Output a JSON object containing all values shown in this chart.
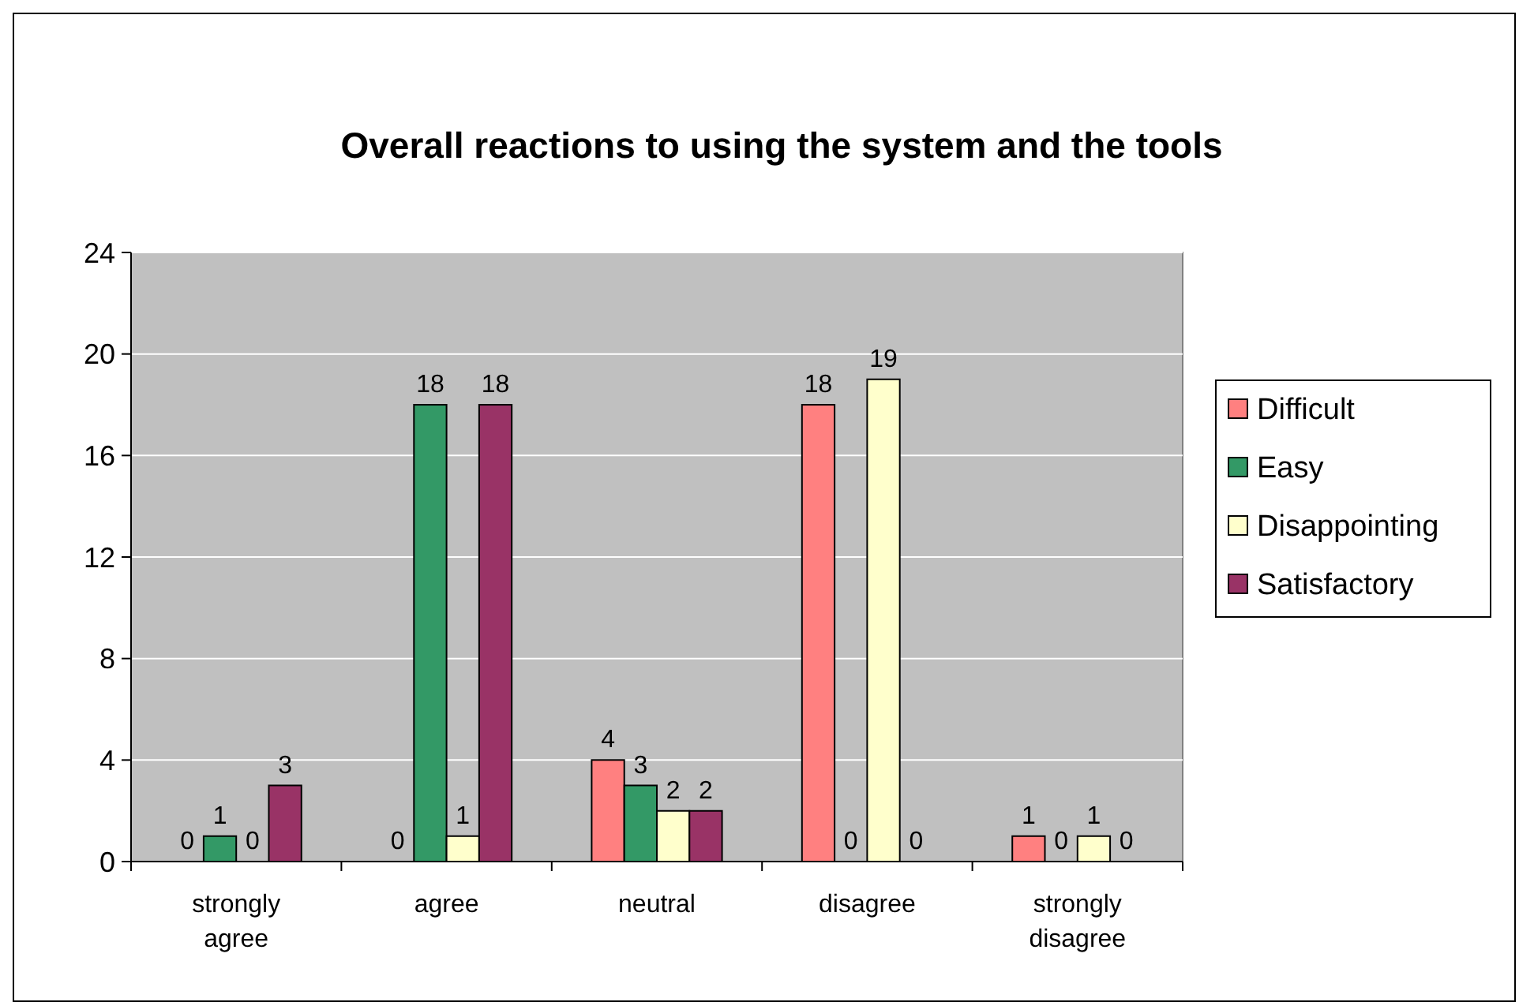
{
  "chart_data": {
    "type": "bar",
    "title": "Overall reactions to using the system and the tools",
    "categories": [
      "strongly agree",
      "agree",
      "neutral",
      "disagree",
      "strongly disagree"
    ],
    "series": [
      {
        "name": "Difficult",
        "color": "#ff8080",
        "values": [
          0,
          0,
          4,
          18,
          1
        ]
      },
      {
        "name": "Easy",
        "color": "#339966",
        "values": [
          1,
          18,
          3,
          0,
          0
        ]
      },
      {
        "name": "Disappointing",
        "color": "#ffffcc",
        "values": [
          0,
          1,
          2,
          19,
          1
        ]
      },
      {
        "name": "Satisfactory",
        "color": "#993366",
        "values": [
          3,
          18,
          2,
          0,
          0
        ]
      }
    ],
    "ylim": [
      0,
      24
    ],
    "yticks": [
      0,
      4,
      8,
      12,
      16,
      20,
      24
    ],
    "grid": "y",
    "legend": "right",
    "data_labels": true
  }
}
